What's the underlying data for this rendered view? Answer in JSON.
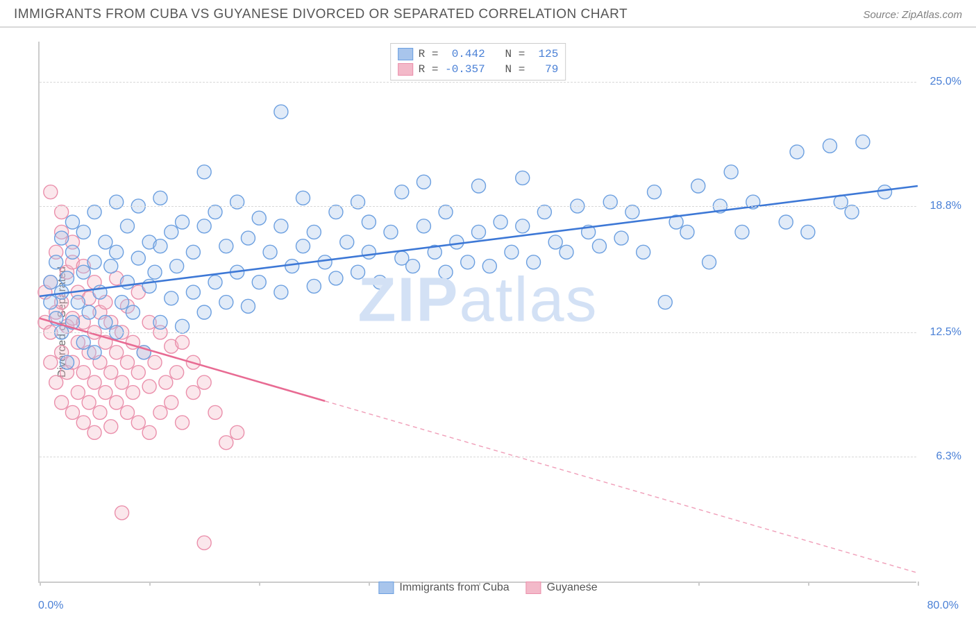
{
  "header": {
    "title": "IMMIGRANTS FROM CUBA VS GUYANESE DIVORCED OR SEPARATED CORRELATION CHART",
    "source": "Source: ZipAtlas.com"
  },
  "watermark": {
    "left": "ZIP",
    "right": "atlas"
  },
  "chart": {
    "type": "scatter",
    "background_color": "#ffffff",
    "grid_color": "#d8d8d8",
    "axis_color": "#cccccc",
    "tick_label_color": "#4a80d6",
    "axis_label_color": "#666666",
    "y_axis_label": "Divorced or Separated",
    "xlim": [
      0,
      80
    ],
    "ylim": [
      0,
      27
    ],
    "x_min_label": "0.0%",
    "x_max_label": "80.0%",
    "x_ticks": [
      0,
      10,
      20,
      30,
      40,
      50,
      60,
      70,
      80
    ],
    "y_ticks": [
      {
        "v": 6.3,
        "label": "6.3%"
      },
      {
        "v": 12.5,
        "label": "12.5%"
      },
      {
        "v": 18.8,
        "label": "18.8%"
      },
      {
        "v": 25.0,
        "label": "25.0%"
      }
    ],
    "tick_fontsize": 16,
    "label_fontsize": 16,
    "marker_radius": 10,
    "marker_fill_opacity": 0.35,
    "marker_stroke_width": 1.4,
    "line_width": 2.6,
    "dash_pattern": "6,5",
    "series": [
      {
        "name": "Immigrants from Cuba",
        "color_fill": "#a8c5ec",
        "color_stroke": "#6b9fe0",
        "line_color": "#3d78d6",
        "R": "0.442",
        "N": "125",
        "trend": {
          "x1": 0,
          "y1": 14.3,
          "x2": 80,
          "y2": 19.8,
          "solid_until_x": 80
        },
        "points": [
          [
            1,
            14.0
          ],
          [
            1,
            15.0
          ],
          [
            1.5,
            13.2
          ],
          [
            1.5,
            16.0
          ],
          [
            2,
            12.5
          ],
          [
            2,
            14.5
          ],
          [
            2,
            17.2
          ],
          [
            2.5,
            11.0
          ],
          [
            2.5,
            15.2
          ],
          [
            3,
            13.0
          ],
          [
            3,
            16.5
          ],
          [
            3,
            18.0
          ],
          [
            3.5,
            14.0
          ],
          [
            4,
            12.0
          ],
          [
            4,
            15.5
          ],
          [
            4,
            17.5
          ],
          [
            4.5,
            13.5
          ],
          [
            5,
            11.5
          ],
          [
            5,
            16.0
          ],
          [
            5,
            18.5
          ],
          [
            5.5,
            14.5
          ],
          [
            6,
            13.0
          ],
          [
            6,
            17.0
          ],
          [
            6.5,
            15.8
          ],
          [
            7,
            12.5
          ],
          [
            7,
            16.5
          ],
          [
            7,
            19.0
          ],
          [
            7.5,
            14.0
          ],
          [
            8,
            15.0
          ],
          [
            8,
            17.8
          ],
          [
            8.5,
            13.5
          ],
          [
            9,
            16.2
          ],
          [
            9,
            18.8
          ],
          [
            9.5,
            11.5
          ],
          [
            10,
            14.8
          ],
          [
            10,
            17.0
          ],
          [
            10.5,
            15.5
          ],
          [
            11,
            13.0
          ],
          [
            11,
            16.8
          ],
          [
            11,
            19.2
          ],
          [
            12,
            14.2
          ],
          [
            12,
            17.5
          ],
          [
            12.5,
            15.8
          ],
          [
            13,
            12.8
          ],
          [
            13,
            18.0
          ],
          [
            14,
            14.5
          ],
          [
            14,
            16.5
          ],
          [
            15,
            13.5
          ],
          [
            15,
            17.8
          ],
          [
            15,
            20.5
          ],
          [
            16,
            15.0
          ],
          [
            16,
            18.5
          ],
          [
            17,
            14.0
          ],
          [
            17,
            16.8
          ],
          [
            18,
            15.5
          ],
          [
            18,
            19.0
          ],
          [
            19,
            13.8
          ],
          [
            19,
            17.2
          ],
          [
            20,
            15.0
          ],
          [
            20,
            18.2
          ],
          [
            21,
            16.5
          ],
          [
            22,
            14.5
          ],
          [
            22,
            17.8
          ],
          [
            22,
            23.5
          ],
          [
            23,
            15.8
          ],
          [
            24,
            16.8
          ],
          [
            24,
            19.2
          ],
          [
            25,
            14.8
          ],
          [
            25,
            17.5
          ],
          [
            26,
            16.0
          ],
          [
            27,
            15.2
          ],
          [
            27,
            18.5
          ],
          [
            28,
            17.0
          ],
          [
            29,
            15.5
          ],
          [
            29,
            19.0
          ],
          [
            30,
            16.5
          ],
          [
            30,
            18.0
          ],
          [
            31,
            15.0
          ],
          [
            32,
            17.5
          ],
          [
            33,
            16.2
          ],
          [
            33,
            19.5
          ],
          [
            34,
            15.8
          ],
          [
            35,
            17.8
          ],
          [
            35,
            20.0
          ],
          [
            36,
            16.5
          ],
          [
            37,
            15.5
          ],
          [
            37,
            18.5
          ],
          [
            38,
            17.0
          ],
          [
            39,
            16.0
          ],
          [
            40,
            17.5
          ],
          [
            40,
            19.8
          ],
          [
            41,
            15.8
          ],
          [
            42,
            18.0
          ],
          [
            43,
            16.5
          ],
          [
            44,
            17.8
          ],
          [
            44,
            20.2
          ],
          [
            45,
            16.0
          ],
          [
            46,
            18.5
          ],
          [
            47,
            17.0
          ],
          [
            48,
            16.5
          ],
          [
            49,
            18.8
          ],
          [
            50,
            17.5
          ],
          [
            51,
            16.8
          ],
          [
            52,
            19.0
          ],
          [
            53,
            17.2
          ],
          [
            54,
            18.5
          ],
          [
            55,
            16.5
          ],
          [
            56,
            19.5
          ],
          [
            57,
            14.0
          ],
          [
            58,
            18.0
          ],
          [
            59,
            17.5
          ],
          [
            60,
            19.8
          ],
          [
            61,
            16.0
          ],
          [
            62,
            18.8
          ],
          [
            63,
            20.5
          ],
          [
            64,
            17.5
          ],
          [
            65,
            19.0
          ],
          [
            68,
            18.0
          ],
          [
            69,
            21.5
          ],
          [
            70,
            17.5
          ],
          [
            72,
            21.8
          ],
          [
            73,
            19.0
          ],
          [
            74,
            18.5
          ],
          [
            75,
            22.0
          ],
          [
            77,
            19.5
          ]
        ]
      },
      {
        "name": "Guyanese",
        "color_fill": "#f3b9c9",
        "color_stroke": "#ea8fab",
        "line_color": "#e86b93",
        "R": "-0.357",
        "N": "79",
        "trend": {
          "x1": 0,
          "y1": 13.2,
          "x2": 80,
          "y2": 0.5,
          "solid_until_x": 26
        },
        "points": [
          [
            0.5,
            13.0
          ],
          [
            0.5,
            14.5
          ],
          [
            1,
            11.0
          ],
          [
            1,
            12.5
          ],
          [
            1,
            15.0
          ],
          [
            1,
            19.5
          ],
          [
            1.5,
            10.0
          ],
          [
            1.5,
            13.5
          ],
          [
            1.5,
            16.5
          ],
          [
            2,
            9.0
          ],
          [
            2,
            11.5
          ],
          [
            2,
            14.0
          ],
          [
            2,
            17.5
          ],
          [
            2,
            18.5
          ],
          [
            2.5,
            10.5
          ],
          [
            2.5,
            12.8
          ],
          [
            2.5,
            15.5
          ],
          [
            3,
            8.5
          ],
          [
            3,
            11.0
          ],
          [
            3,
            13.2
          ],
          [
            3,
            16.0
          ],
          [
            3,
            17.0
          ],
          [
            3.5,
            9.5
          ],
          [
            3.5,
            12.0
          ],
          [
            3.5,
            14.5
          ],
          [
            4,
            8.0
          ],
          [
            4,
            10.5
          ],
          [
            4,
            13.0
          ],
          [
            4,
            15.8
          ],
          [
            4.5,
            9.0
          ],
          [
            4.5,
            11.5
          ],
          [
            4.5,
            14.2
          ],
          [
            5,
            7.5
          ],
          [
            5,
            10.0
          ],
          [
            5,
            12.5
          ],
          [
            5,
            15.0
          ],
          [
            5.5,
            8.5
          ],
          [
            5.5,
            11.0
          ],
          [
            5.5,
            13.5
          ],
          [
            6,
            9.5
          ],
          [
            6,
            12.0
          ],
          [
            6,
            14.0
          ],
          [
            6.5,
            7.8
          ],
          [
            6.5,
            10.5
          ],
          [
            6.5,
            13.0
          ],
          [
            7,
            9.0
          ],
          [
            7,
            11.5
          ],
          [
            7,
            15.2
          ],
          [
            7.5,
            3.5
          ],
          [
            7.5,
            10.0
          ],
          [
            7.5,
            12.5
          ],
          [
            8,
            8.5
          ],
          [
            8,
            11.0
          ],
          [
            8,
            13.8
          ],
          [
            8.5,
            9.5
          ],
          [
            8.5,
            12.0
          ],
          [
            9,
            8.0
          ],
          [
            9,
            10.5
          ],
          [
            9,
            14.5
          ],
          [
            9.5,
            11.5
          ],
          [
            10,
            7.5
          ],
          [
            10,
            9.8
          ],
          [
            10,
            13.0
          ],
          [
            10.5,
            11.0
          ],
          [
            11,
            8.5
          ],
          [
            11,
            12.5
          ],
          [
            11.5,
            10.0
          ],
          [
            12,
            9.0
          ],
          [
            12,
            11.8
          ],
          [
            12.5,
            10.5
          ],
          [
            13,
            8.0
          ],
          [
            13,
            12.0
          ],
          [
            14,
            9.5
          ],
          [
            14,
            11.0
          ],
          [
            15,
            2.0
          ],
          [
            15,
            10.0
          ],
          [
            16,
            8.5
          ],
          [
            17,
            7.0
          ],
          [
            18,
            7.5
          ]
        ]
      }
    ]
  },
  "legend_bottom": [
    {
      "label": "Immigrants from Cuba",
      "fill": "#a8c5ec",
      "stroke": "#6b9fe0"
    },
    {
      "label": "Guyanese",
      "fill": "#f3b9c9",
      "stroke": "#ea8fab"
    }
  ]
}
